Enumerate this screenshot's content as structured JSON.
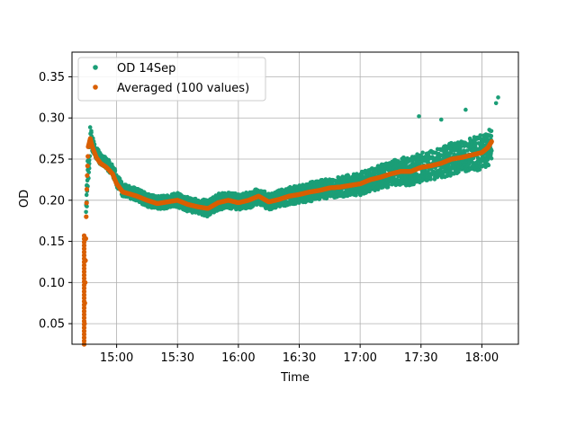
{
  "chart_data": {
    "type": "scatter",
    "xlabel": "Time",
    "ylabel": "OD",
    "x_unit": "time of day (HH:MM)",
    "xlim": [
      "14:38",
      "18:18"
    ],
    "ylim": [
      0.025,
      0.38
    ],
    "x_ticks": [
      "15:00",
      "15:30",
      "16:00",
      "16:30",
      "17:00",
      "17:30",
      "18:00"
    ],
    "y_ticks": [
      "0.05",
      "0.10",
      "0.15",
      "0.20",
      "0.25",
      "0.30",
      "0.35"
    ],
    "grid": true,
    "legend_position": "top-left",
    "series": [
      {
        "name": "OD 14Sep",
        "color": "#1b9e77",
        "marker": "point",
        "x": [
          "14:45",
          "14:46",
          "14:47",
          "14:48",
          "14:50",
          "14:52",
          "14:55",
          "14:58",
          "15:00",
          "15:03",
          "15:06",
          "15:10",
          "15:15",
          "15:20",
          "15:25",
          "15:30",
          "15:35",
          "15:40",
          "15:45",
          "15:50",
          "15:55",
          "16:00",
          "16:05",
          "16:10",
          "16:15",
          "16:20",
          "16:25",
          "16:30",
          "16:35",
          "16:40",
          "16:45",
          "16:50",
          "16:55",
          "17:00",
          "17:05",
          "17:10",
          "17:15",
          "17:20",
          "17:25",
          "17:30",
          "17:35",
          "17:40",
          "17:45",
          "17:50",
          "17:55",
          "18:00",
          "18:03",
          "18:05"
        ],
        "y": [
          0.195,
          0.24,
          0.275,
          0.27,
          0.258,
          0.25,
          0.245,
          0.237,
          0.225,
          0.212,
          0.21,
          0.207,
          0.2,
          0.197,
          0.198,
          0.2,
          0.195,
          0.193,
          0.19,
          0.198,
          0.2,
          0.198,
          0.2,
          0.205,
          0.198,
          0.202,
          0.205,
          0.207,
          0.21,
          0.212,
          0.215,
          0.217,
          0.218,
          0.22,
          0.225,
          0.228,
          0.232,
          0.235,
          0.235,
          0.24,
          0.242,
          0.245,
          0.25,
          0.252,
          0.255,
          0.258,
          0.263,
          0.27
        ],
        "spread": [
          0.012,
          0.02,
          0.015,
          0.01,
          0.008,
          0.007,
          0.007,
          0.007,
          0.008,
          0.008,
          0.008,
          0.008,
          0.008,
          0.008,
          0.008,
          0.009,
          0.009,
          0.009,
          0.01,
          0.01,
          0.01,
          0.01,
          0.01,
          0.01,
          0.01,
          0.01,
          0.011,
          0.011,
          0.012,
          0.012,
          0.012,
          0.013,
          0.013,
          0.014,
          0.014,
          0.015,
          0.016,
          0.017,
          0.017,
          0.018,
          0.018,
          0.019,
          0.02,
          0.02,
          0.021,
          0.022,
          0.022,
          0.022
        ]
      },
      {
        "name": "Averaged (100 values)",
        "color": "#d95f02",
        "marker": "point",
        "x": [
          "14:44",
          "14:44.5",
          "14:45",
          "14:45.5",
          "14:46",
          "14:47",
          "14:48",
          "14:50",
          "14:52",
          "14:55",
          "14:58",
          "15:00",
          "15:03",
          "15:06",
          "15:10",
          "15:15",
          "15:20",
          "15:25",
          "15:30",
          "15:35",
          "15:40",
          "15:45",
          "15:50",
          "15:55",
          "16:00",
          "16:05",
          "16:10",
          "16:15",
          "16:20",
          "16:25",
          "16:30",
          "16:35",
          "16:40",
          "16:45",
          "16:50",
          "16:55",
          "17:00",
          "17:05",
          "17:10",
          "17:15",
          "17:20",
          "17:25",
          "17:30",
          "17:35",
          "17:40",
          "17:45",
          "17:50",
          "17:55",
          "18:00",
          "18:03",
          "18:05"
        ],
        "y": [
          0.025,
          0.1,
          0.18,
          0.23,
          0.265,
          0.275,
          0.265,
          0.252,
          0.245,
          0.24,
          0.232,
          0.22,
          0.21,
          0.208,
          0.205,
          0.2,
          0.196,
          0.198,
          0.2,
          0.195,
          0.192,
          0.19,
          0.197,
          0.2,
          0.197,
          0.2,
          0.205,
          0.198,
          0.201,
          0.205,
          0.207,
          0.21,
          0.212,
          0.215,
          0.216,
          0.218,
          0.22,
          0.225,
          0.228,
          0.232,
          0.235,
          0.235,
          0.24,
          0.242,
          0.245,
          0.25,
          0.252,
          0.255,
          0.258,
          0.264,
          0.272
        ]
      }
    ]
  }
}
